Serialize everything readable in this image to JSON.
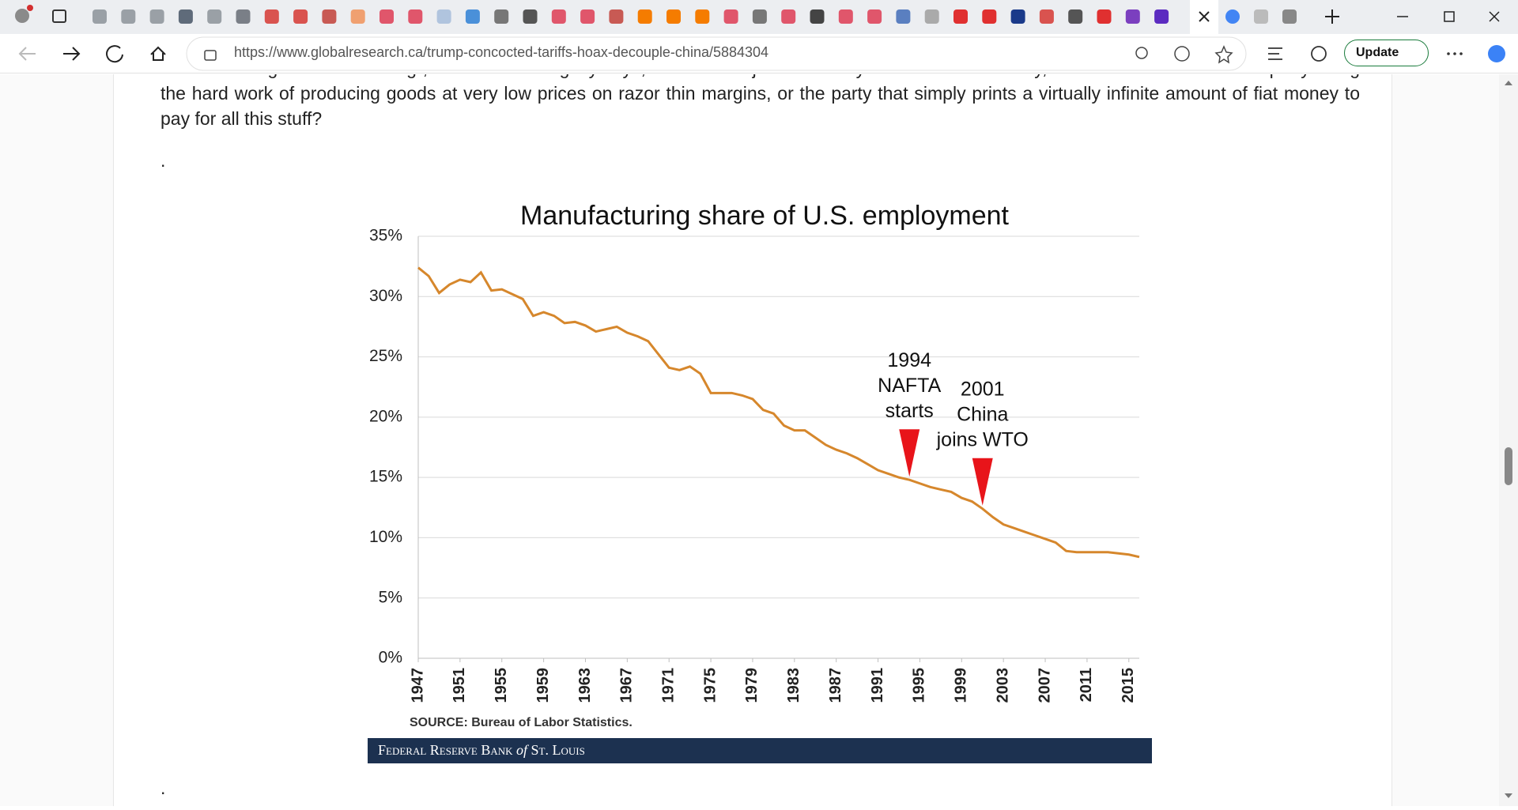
{
  "browser": {
    "url": "https://www.globalresearch.ca/trump-concocted-tariffs-hoax-decouple-china/5884304",
    "update_button": "Update"
  },
  "article": {
    "paragraphs": [
      "Characterizing this as “cheating”, like Summers rightly says, should be rejected entirely. At the end of the day, who’s more “cheated”: the party doing the hard work of producing goods at very low prices on razor thin margins, or the party that simply prints a virtually infinite amount of fiat money to pay for all this stuff?",
      ".",
      "."
    ]
  },
  "chart_data": {
    "type": "line",
    "title": "Manufacturing share of U.S. employment",
    "x": [
      1947,
      1948,
      1949,
      1950,
      1951,
      1952,
      1953,
      1954,
      1955,
      1956,
      1957,
      1958,
      1959,
      1960,
      1961,
      1962,
      1963,
      1964,
      1965,
      1966,
      1967,
      1968,
      1969,
      1970,
      1971,
      1972,
      1973,
      1974,
      1975,
      1976,
      1977,
      1978,
      1979,
      1980,
      1981,
      1982,
      1983,
      1984,
      1985,
      1986,
      1987,
      1988,
      1989,
      1990,
      1991,
      1992,
      1993,
      1994,
      1995,
      1996,
      1997,
      1998,
      1999,
      2000,
      2001,
      2002,
      2003,
      2004,
      2005,
      2006,
      2007,
      2008,
      2009,
      2010,
      2011,
      2012,
      2013,
      2014,
      2015,
      2016
    ],
    "series": [
      {
        "name": "Manufacturing share of U.S. employment",
        "color": "#d6872c",
        "values": [
          32.4,
          31.7,
          30.3,
          31.0,
          31.4,
          31.2,
          32.0,
          30.5,
          30.6,
          30.2,
          29.8,
          28.4,
          28.7,
          28.4,
          27.8,
          27.9,
          27.6,
          27.1,
          27.3,
          27.5,
          27.0,
          26.7,
          26.3,
          25.2,
          24.1,
          23.9,
          24.2,
          23.6,
          22.0,
          22.0,
          22.0,
          21.8,
          21.5,
          20.6,
          20.3,
          19.3,
          18.9,
          18.9,
          18.3,
          17.7,
          17.3,
          17.0,
          16.6,
          16.1,
          15.6,
          15.3,
          15.0,
          14.8,
          14.5,
          14.2,
          14.0,
          13.8,
          13.3,
          13.0,
          12.4,
          11.7,
          11.1,
          10.8,
          10.5,
          10.2,
          9.9,
          9.6,
          8.9,
          8.8,
          8.8,
          8.8,
          8.8,
          8.7,
          8.6,
          8.4
        ]
      }
    ],
    "xlim": [
      1947,
      2016
    ],
    "xticks": [
      1947,
      1951,
      1955,
      1959,
      1963,
      1967,
      1971,
      1975,
      1979,
      1983,
      1987,
      1991,
      1995,
      1999,
      2003,
      2007,
      2011,
      2015
    ],
    "ylim": [
      0,
      35
    ],
    "yticks": [
      {
        "value": 0,
        "label": "0%"
      },
      {
        "value": 5,
        "label": "5%"
      },
      {
        "value": 10,
        "label": "10%"
      },
      {
        "value": 15,
        "label": "15%"
      },
      {
        "value": 20,
        "label": "20%"
      },
      {
        "value": 25,
        "label": "25%"
      },
      {
        "value": 30,
        "label": "30%"
      },
      {
        "value": 35,
        "label": "35%"
      }
    ],
    "grid": true,
    "annotations": [
      {
        "lines": [
          "1994",
          "NAFTA",
          "starts"
        ],
        "x": 1994,
        "color": "#e8141a"
      },
      {
        "lines": [
          "2001",
          "China",
          "joins WTO"
        ],
        "x": 2001,
        "color": "#e8141a"
      }
    ],
    "source": "SOURCE: Bureau of Labor Statistics.",
    "footer": [
      "Federal Reserve Bank",
      "of",
      "St. Louis"
    ]
  }
}
